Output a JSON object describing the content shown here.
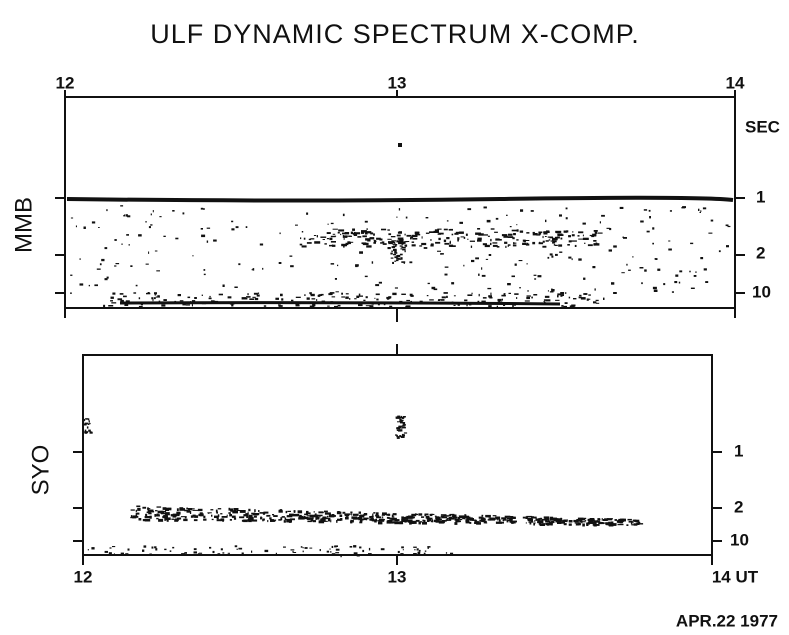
{
  "title": "ULF DYNAMIC SPECTRUM X-COMP.",
  "panels": [
    {
      "label": "MMB",
      "top_ticks": [
        "12",
        "13",
        "14"
      ],
      "unit": "SEC",
      "right_ticks": [
        "1",
        "2",
        "10"
      ]
    },
    {
      "label": "SYO",
      "right_ticks": [
        "1",
        "2",
        "10"
      ],
      "bottom_ticks": [
        "12",
        "13",
        "14 UT"
      ]
    }
  ],
  "date": "APR.22 1977"
}
